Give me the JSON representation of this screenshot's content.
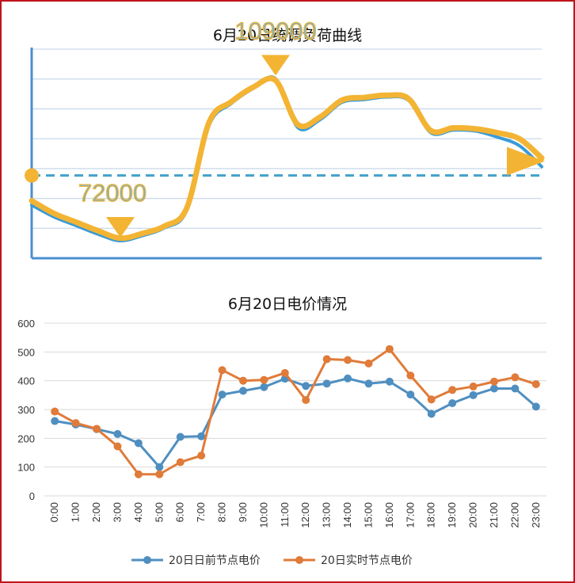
{
  "chart_data": [
    {
      "type": "line",
      "title": "6月20日统调负荷曲线",
      "annotations": [
        {
          "label": "109000",
          "kind": "peak"
        },
        {
          "label": "72000",
          "kind": "valley"
        }
      ],
      "series": [
        {
          "kind": "actual",
          "color": "#3a9bd6",
          "x": [
            0,
            1,
            2,
            3,
            4,
            5,
            6,
            7,
            8,
            9,
            10,
            11,
            12,
            13,
            14,
            15,
            16,
            17,
            18,
            19,
            20,
            21,
            22,
            23
          ],
          "values": [
            80200,
            77500,
            75500,
            73500,
            72000,
            73200,
            75000,
            79000,
            98500,
            103500,
            107000,
            109200,
            98000,
            99800,
            103800,
            104400,
            105000,
            104200,
            96800,
            97400,
            97200,
            95800,
            93800,
            89000
          ]
        },
        {
          "kind": "forecast",
          "color": "#f3b434",
          "x": [
            0,
            1,
            2,
            3,
            4,
            5,
            6,
            7,
            8,
            9,
            10,
            11,
            12,
            13,
            14,
            15,
            16,
            17,
            18,
            19,
            20,
            21,
            22,
            23
          ],
          "values": [
            81200,
            78300,
            76300,
            74300,
            72600,
            73700,
            75400,
            79600,
            99200,
            103900,
            107300,
            108800,
            98700,
            100400,
            104300,
            104900,
            105400,
            104600,
            97300,
            97900,
            97700,
            96800,
            95400,
            91000
          ]
        }
      ],
      "reference_line": 87000,
      "ylim": [
        68000,
        116000
      ],
      "grid": true,
      "colors": {
        "axis": "#4a8fd0",
        "grid": "#c9d9ec",
        "reference": "#45a3cc",
        "actual": "#3a9bd6",
        "forecast": "#f3b434"
      }
    },
    {
      "type": "line",
      "title": "6月20日电价情况",
      "categories": [
        "0:00",
        "1:00",
        "2:00",
        "3:00",
        "4:00",
        "5:00",
        "6:00",
        "7:00",
        "8:00",
        "9:00",
        "10:00",
        "11:00",
        "12:00",
        "13:00",
        "14:00",
        "15:00",
        "16:00",
        "17:00",
        "18:00",
        "19:00",
        "20:00",
        "21:00",
        "22:00",
        "23:00"
      ],
      "series": [
        {
          "name": "20日日前节点电价",
          "color": "#4f8fc0",
          "values": [
            260,
            248,
            232,
            215,
            183,
            100,
            205,
            207,
            352,
            365,
            378,
            407,
            382,
            390,
            408,
            390,
            397,
            352,
            285,
            322,
            350,
            373,
            373,
            310
          ]
        },
        {
          "name": "20日实时节点电价",
          "color": "#e07b39",
          "values": [
            293,
            253,
            233,
            172,
            75,
            75,
            117,
            140,
            437,
            400,
            403,
            427,
            333,
            475,
            472,
            460,
            510,
            418,
            335,
            368,
            380,
            397,
            412,
            388
          ]
        }
      ],
      "ylim": [
        0,
        600
      ],
      "yticks": [
        0,
        100,
        200,
        300,
        400,
        500,
        600
      ],
      "grid": true,
      "legend": "bottom",
      "colors": {
        "grid": "#d9d9d9"
      }
    }
  ]
}
